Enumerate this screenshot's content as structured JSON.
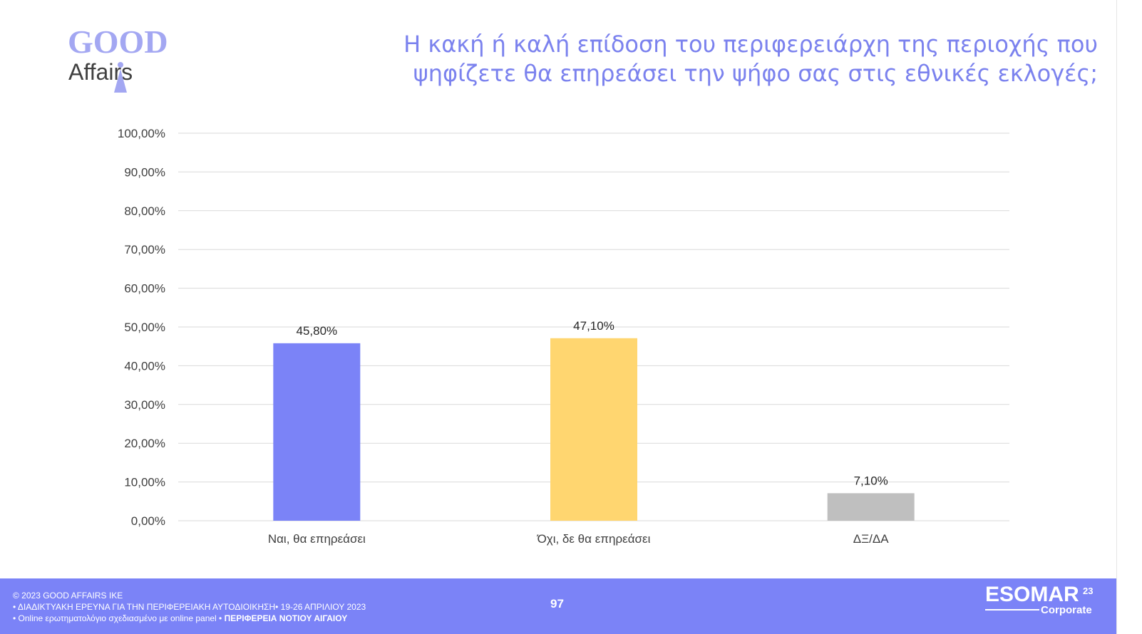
{
  "header": {
    "logo_top": "GOOD",
    "logo_bottom": "Affairs",
    "title_line1": "Η κακή ή καλή επίδοση του περιφερειάρχη της περιοχής που",
    "title_line2": "ψηφίζετε θα επηρεάσει την ψήφο σας στις εθνικές εκλογές;"
  },
  "chart_data": {
    "type": "bar",
    "title": "Η κακή ή καλή επίδοση του περιφερειάρχη της περιοχής που ψηφίζετε θα επηρεάσει την ψήφο σας στις εθνικές εκλογές;",
    "categories": [
      "Ναι, θα επηρεάσει",
      "Όχι, δε θα επηρεάσει",
      "ΔΞ/ΔΑ"
    ],
    "values": [
      45.8,
      47.1,
      7.1
    ],
    "value_labels": [
      "45,80%",
      "47,10%",
      "7,10%"
    ],
    "colors": [
      "#7b83f7",
      "#ffd670",
      "#bfbfbf"
    ],
    "ylim": [
      0,
      100
    ],
    "yticks": [
      0,
      10,
      20,
      30,
      40,
      50,
      60,
      70,
      80,
      90,
      100
    ],
    "ytick_labels": [
      "0,00%",
      "10,00%",
      "20,00%",
      "30,00%",
      "40,00%",
      "50,00%",
      "60,00%",
      "70,00%",
      "80,00%",
      "90,00%",
      "100,00%"
    ],
    "grid": true,
    "legend": "none"
  },
  "footer": {
    "line1": "© 2023 GOOD AFFAIRS IKE",
    "line2": "• ΔΙΑΔΙΚΤΥΑΚΗ ΕΡΕΥΝΑ  ΓΙΑ ΤΗΝ ΠΕΡΙΦΕΡΕΙΑΚΗ ΑΥΤΟΔΙΟΙΚΗΣΗ• 19-26 ΑΠΡΙΛΙΟΥ 2023",
    "line3a": "• Online ερωτηματολόγιο σχεδιασμένο με online panel  • ",
    "line3b": "ΠΕΡΙΦΕΡΕΙΑ ΝΟΤΙΟΥ ΑΙΓΑΙΟΥ",
    "page_number": "97",
    "badge_name": "ESOMAR",
    "badge_sup": "23",
    "badge_sub": "Corporate"
  }
}
